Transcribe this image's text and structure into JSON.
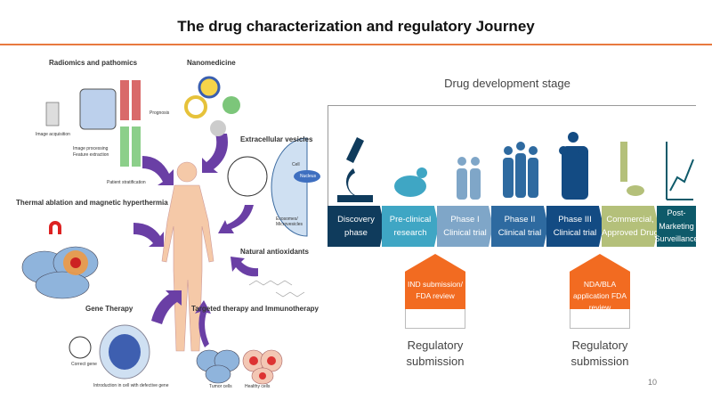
{
  "slide": {
    "title": "The drug characterization and regulatory Journey",
    "page_number": "10"
  },
  "left_figure": {
    "sections": [
      "Radiomics and pathomics",
      "Nanomedicine",
      "Extracellular vesicles",
      "Thermal ablation and magnetic hyperthermia",
      "Natural antioxidants",
      "Gene Therapy",
      "Targeted therapy and Immunotherapy"
    ],
    "captions": [
      "Image acquisition",
      "Image processing",
      "Feature extraction",
      "Prognosis",
      "Patient stratification",
      "Cell",
      "Nucleus",
      "Exosomes/ Microvesicles",
      "Correct gene",
      "Introduction in cell with defective gene",
      "Tumor cells",
      "Healthy cells"
    ]
  },
  "right_figure": {
    "heading": "Drug development stage",
    "stages": [
      {
        "label": "Discovery phase",
        "color": "#0f3b5c",
        "icon": "microscope-icon"
      },
      {
        "label": "Pre-clinical research",
        "color": "#3fa6c4",
        "icon": "mouse-icon"
      },
      {
        "label": "Phase I Clinical trial",
        "color": "#7fa6c8",
        "icon": "small-group-icon"
      },
      {
        "label": "Phase II Clinical trial",
        "color": "#2e6aa0",
        "icon": "medium-group-icon"
      },
      {
        "label": "Phase III Clinical trial",
        "color": "#134b83",
        "icon": "large-group-icon"
      },
      {
        "label": "Commercial, Approved Drug",
        "color": "#b4c07a",
        "icon": "syringe-pill-icon"
      },
      {
        "label": "Post-Marketing Surveillance",
        "color": "#0e5a6a",
        "icon": "chart-growth-icon"
      }
    ],
    "submissions": [
      {
        "box": "IND submission/ FDA review",
        "caption": "Regulatory submission"
      },
      {
        "box": "NDA/BLA application FDA review",
        "caption": "Regulatory submission"
      }
    ],
    "accent": "#f26b21"
  }
}
